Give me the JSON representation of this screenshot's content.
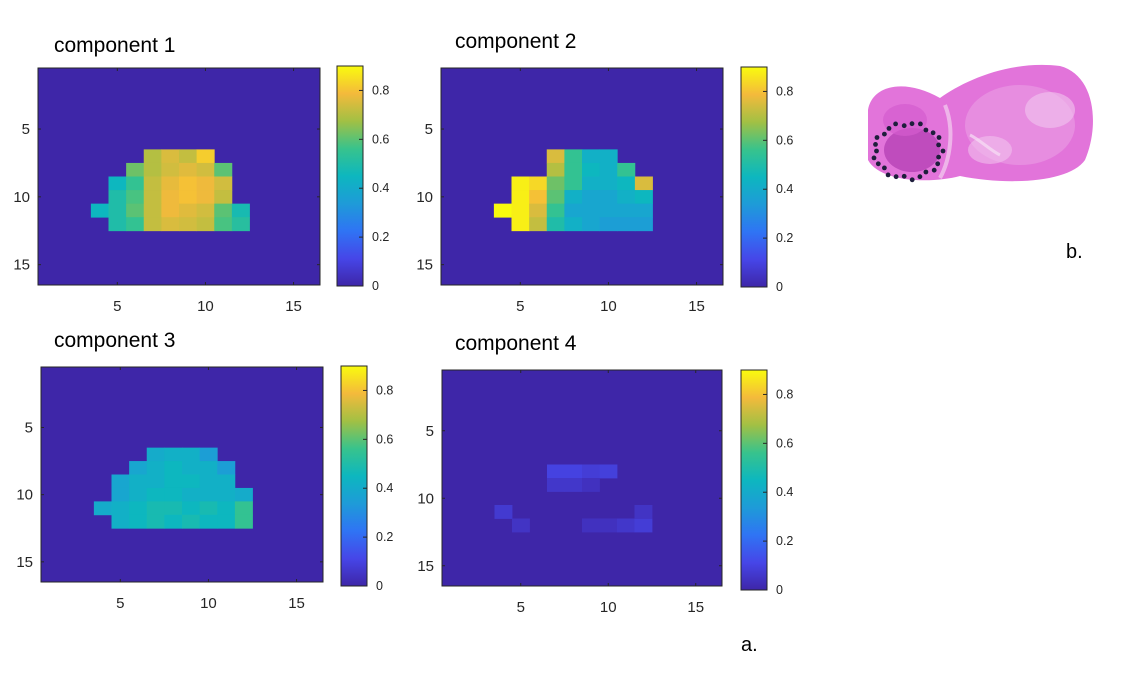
{
  "figure": {
    "label_a": "a.",
    "label_b": "b."
  },
  "colorbar": {
    "min": 0,
    "max": 0.9,
    "ticks": [
      "0",
      "0.2",
      "0.4",
      "0.6",
      "0.8"
    ]
  },
  "colors": {
    "background_value": "#3E26A8",
    "axes_line": "#262626"
  },
  "histology": {
    "description_icon": "he-stained-tissue-section",
    "tissue_color": "#E274DA",
    "marker_color": "#1E1E3C"
  },
  "chart_data": [
    {
      "type": "heatmap",
      "title": "component 1",
      "xlim": [
        0.5,
        16.5
      ],
      "ylim": [
        0.5,
        16.5
      ],
      "xticks": [
        "5",
        "10",
        "15"
      ],
      "yticks": [
        "5",
        "10",
        "15"
      ],
      "clim": [
        0,
        0.9
      ],
      "cells": [
        [
          7,
          7,
          0.7
        ],
        [
          8,
          7,
          0.75
        ],
        [
          9,
          7,
          0.72
        ],
        [
          10,
          7,
          0.82
        ],
        [
          6,
          8,
          0.62
        ],
        [
          7,
          8,
          0.7
        ],
        [
          8,
          8,
          0.74
        ],
        [
          9,
          8,
          0.76
        ],
        [
          10,
          8,
          0.74
        ],
        [
          11,
          8,
          0.6
        ],
        [
          5,
          9,
          0.45
        ],
        [
          6,
          9,
          0.55
        ],
        [
          7,
          9,
          0.72
        ],
        [
          8,
          9,
          0.77
        ],
        [
          9,
          9,
          0.8
        ],
        [
          10,
          9,
          0.78
        ],
        [
          11,
          9,
          0.74
        ],
        [
          5,
          10,
          0.5
        ],
        [
          6,
          10,
          0.58
        ],
        [
          7,
          10,
          0.72
        ],
        [
          8,
          10,
          0.78
        ],
        [
          9,
          10,
          0.8
        ],
        [
          10,
          10,
          0.78
        ],
        [
          11,
          10,
          0.72
        ],
        [
          4,
          11,
          0.45
        ],
        [
          5,
          11,
          0.5
        ],
        [
          6,
          11,
          0.6
        ],
        [
          7,
          11,
          0.72
        ],
        [
          8,
          11,
          0.78
        ],
        [
          9,
          11,
          0.76
        ],
        [
          10,
          11,
          0.74
        ],
        [
          11,
          11,
          0.6
        ],
        [
          12,
          11,
          0.48
        ],
        [
          5,
          12,
          0.5
        ],
        [
          6,
          12,
          0.55
        ],
        [
          7,
          12,
          0.72
        ],
        [
          8,
          12,
          0.75
        ],
        [
          9,
          12,
          0.74
        ],
        [
          10,
          12,
          0.72
        ],
        [
          11,
          12,
          0.58
        ],
        [
          12,
          12,
          0.52
        ]
      ]
    },
    {
      "type": "heatmap",
      "title": "component 2",
      "xlim": [
        0.5,
        16.5
      ],
      "ylim": [
        0.5,
        16.5
      ],
      "xticks": [
        "5",
        "10",
        "15"
      ],
      "yticks": [
        "5",
        "10",
        "15"
      ],
      "clim": [
        0,
        0.9
      ],
      "cells": [
        [
          7,
          7,
          0.75
        ],
        [
          8,
          7,
          0.55
        ],
        [
          9,
          7,
          0.42
        ],
        [
          10,
          7,
          0.42
        ],
        [
          7,
          8,
          0.7
        ],
        [
          8,
          8,
          0.55
        ],
        [
          9,
          8,
          0.45
        ],
        [
          10,
          8,
          0.42
        ],
        [
          11,
          8,
          0.55
        ],
        [
          5,
          9,
          0.88
        ],
        [
          6,
          9,
          0.84
        ],
        [
          7,
          9,
          0.62
        ],
        [
          8,
          9,
          0.55
        ],
        [
          9,
          9,
          0.42
        ],
        [
          10,
          9,
          0.42
        ],
        [
          11,
          9,
          0.45
        ],
        [
          12,
          9,
          0.75
        ],
        [
          5,
          10,
          0.88
        ],
        [
          6,
          10,
          0.8
        ],
        [
          7,
          10,
          0.6
        ],
        [
          8,
          10,
          0.42
        ],
        [
          9,
          10,
          0.38
        ],
        [
          10,
          10,
          0.38
        ],
        [
          11,
          10,
          0.42
        ],
        [
          12,
          10,
          0.45
        ],
        [
          4,
          11,
          0.9
        ],
        [
          5,
          11,
          0.88
        ],
        [
          6,
          11,
          0.75
        ],
        [
          7,
          11,
          0.55
        ],
        [
          8,
          11,
          0.38
        ],
        [
          9,
          11,
          0.38
        ],
        [
          10,
          11,
          0.38
        ],
        [
          11,
          11,
          0.38
        ],
        [
          12,
          11,
          0.38
        ],
        [
          5,
          12,
          0.88
        ],
        [
          6,
          12,
          0.72
        ],
        [
          7,
          12,
          0.5
        ],
        [
          8,
          12,
          0.42
        ],
        [
          9,
          12,
          0.38
        ],
        [
          10,
          12,
          0.35
        ],
        [
          11,
          12,
          0.35
        ],
        [
          12,
          12,
          0.35
        ]
      ]
    },
    {
      "type": "heatmap",
      "title": "component 3",
      "xlim": [
        0.5,
        16.5
      ],
      "ylim": [
        0.5,
        16.5
      ],
      "xticks": [
        "5",
        "10",
        "15"
      ],
      "yticks": [
        "5",
        "10",
        "15"
      ],
      "clim": [
        0,
        0.9
      ],
      "cells": [
        [
          7,
          7,
          0.4
        ],
        [
          8,
          7,
          0.42
        ],
        [
          9,
          7,
          0.42
        ],
        [
          10,
          7,
          0.35
        ],
        [
          6,
          8,
          0.38
        ],
        [
          7,
          8,
          0.42
        ],
        [
          8,
          8,
          0.45
        ],
        [
          9,
          8,
          0.42
        ],
        [
          10,
          8,
          0.42
        ],
        [
          11,
          8,
          0.35
        ],
        [
          5,
          9,
          0.38
        ],
        [
          6,
          9,
          0.42
        ],
        [
          7,
          9,
          0.42
        ],
        [
          8,
          9,
          0.45
        ],
        [
          9,
          9,
          0.45
        ],
        [
          10,
          9,
          0.42
        ],
        [
          11,
          9,
          0.42
        ],
        [
          5,
          10,
          0.38
        ],
        [
          6,
          10,
          0.42
        ],
        [
          7,
          10,
          0.45
        ],
        [
          8,
          10,
          0.45
        ],
        [
          9,
          10,
          0.42
        ],
        [
          10,
          10,
          0.42
        ],
        [
          11,
          10,
          0.42
        ],
        [
          12,
          10,
          0.4
        ],
        [
          4,
          11,
          0.4
        ],
        [
          5,
          11,
          0.42
        ],
        [
          6,
          11,
          0.45
        ],
        [
          7,
          11,
          0.48
        ],
        [
          8,
          11,
          0.48
        ],
        [
          9,
          11,
          0.45
        ],
        [
          10,
          11,
          0.48
        ],
        [
          11,
          11,
          0.45
        ],
        [
          12,
          11,
          0.55
        ],
        [
          5,
          12,
          0.42
        ],
        [
          6,
          12,
          0.45
        ],
        [
          7,
          12,
          0.48
        ],
        [
          8,
          12,
          0.45
        ],
        [
          9,
          12,
          0.48
        ],
        [
          10,
          12,
          0.45
        ],
        [
          11,
          12,
          0.45
        ],
        [
          12,
          12,
          0.55
        ]
      ]
    },
    {
      "type": "heatmap",
      "title": "component 4",
      "xlim": [
        0.5,
        16.5
      ],
      "ylim": [
        0.5,
        16.5
      ],
      "xticks": [
        "5",
        "10",
        "15"
      ],
      "yticks": [
        "5",
        "10",
        "15"
      ],
      "clim": [
        0,
        0.9
      ],
      "cells": [
        [
          7,
          8,
          0.1
        ],
        [
          8,
          8,
          0.1
        ],
        [
          9,
          8,
          0.08
        ],
        [
          10,
          8,
          0.09
        ],
        [
          7,
          9,
          0.06
        ],
        [
          8,
          9,
          0.06
        ],
        [
          9,
          9,
          0.04
        ],
        [
          4,
          11,
          0.07
        ],
        [
          5,
          12,
          0.05
        ],
        [
          9,
          12,
          0.04
        ],
        [
          10,
          12,
          0.04
        ],
        [
          11,
          12,
          0.06
        ],
        [
          12,
          12,
          0.08
        ],
        [
          12,
          11,
          0.05
        ]
      ]
    }
  ]
}
